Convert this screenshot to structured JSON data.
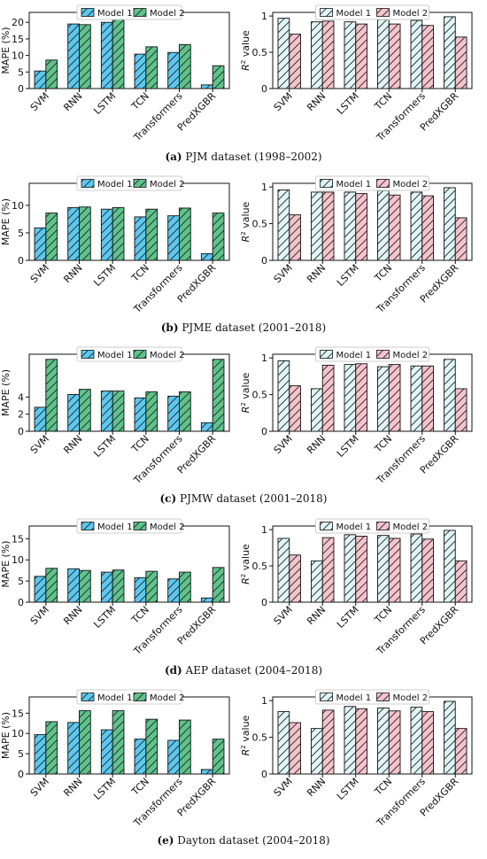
{
  "legend": {
    "model1": "Model 1",
    "model2": "Model 2"
  },
  "colors": {
    "mape_model1": "#5bc8ef",
    "mape_model2": "#5ec38b",
    "r2_model1": "#dff5f8",
    "r2_model2": "#f5c3cc",
    "edge": "#111111"
  },
  "panels": [
    {
      "caption": {
        "letter": "(a)",
        "text": "PJM dataset (1998–2002)"
      }
    },
    {
      "caption": {
        "letter": "(b)",
        "text": "PJME dataset (2001–2018)"
      }
    },
    {
      "caption": {
        "letter": "(c)",
        "text": "PJMW dataset (2001–2018)"
      }
    },
    {
      "caption": {
        "letter": "(d)",
        "text": "AEP dataset (2004–2018)"
      }
    },
    {
      "caption": {
        "letter": "(e)",
        "text": "Dayton dataset (2004–2018)"
      }
    }
  ],
  "chart_data": [
    {
      "panel": "a",
      "type": "bar",
      "categories": [
        "SVM",
        "RNN",
        "LSTM",
        "TCN",
        "Transformers",
        "PredXGBR"
      ],
      "ylabel": "MAPE (%)",
      "ylim": [
        0,
        23
      ],
      "yticks": [
        0,
        5,
        10,
        15,
        20
      ],
      "series": [
        {
          "name": "Model 1",
          "values": [
            5.3,
            19.5,
            20.0,
            10.4,
            10.9,
            1.1
          ]
        },
        {
          "name": "Model 2",
          "values": [
            8.6,
            19.3,
            21.3,
            12.6,
            13.3,
            6.9
          ]
        }
      ],
      "legend_position": "top-center"
    },
    {
      "panel": "a",
      "type": "bar",
      "categories": [
        "SVM",
        "RNN",
        "LSTM",
        "TCN",
        "Transformers",
        "PredXGBR"
      ],
      "ylabel": "R² value",
      "ylim": [
        0,
        1.05
      ],
      "yticks": [
        0,
        0.5,
        1
      ],
      "series": [
        {
          "name": "Model 1",
          "values": [
            0.97,
            0.92,
            0.92,
            0.95,
            0.94,
            0.99
          ]
        },
        {
          "name": "Model 2",
          "values": [
            0.75,
            0.93,
            0.89,
            0.89,
            0.87,
            0.71
          ]
        }
      ],
      "legend_position": "top-center"
    },
    {
      "panel": "b",
      "type": "bar",
      "categories": [
        "SVM",
        "RNN",
        "LSTM",
        "TCN",
        "Transformers",
        "PredXGBR"
      ],
      "ylabel": "MAPE (%)",
      "ylim": [
        0,
        14
      ],
      "yticks": [
        0,
        5,
        10
      ],
      "series": [
        {
          "name": "Model 1",
          "values": [
            5.9,
            9.6,
            9.3,
            7.9,
            8.1,
            1.2
          ]
        },
        {
          "name": "Model 2",
          "values": [
            8.6,
            9.7,
            9.6,
            9.3,
            9.5,
            8.6
          ]
        }
      ],
      "legend_position": "top-center"
    },
    {
      "panel": "b",
      "type": "bar",
      "categories": [
        "SVM",
        "RNN",
        "LSTM",
        "TCN",
        "Transformers",
        "PredXGBR"
      ],
      "ylabel": "R² value",
      "ylim": [
        0,
        1.05
      ],
      "yticks": [
        0,
        0.5,
        1
      ],
      "series": [
        {
          "name": "Model 1",
          "values": [
            0.96,
            0.93,
            0.93,
            0.95,
            0.93,
            0.99
          ]
        },
        {
          "name": "Model 2",
          "values": [
            0.62,
            0.93,
            0.91,
            0.89,
            0.88,
            0.58
          ]
        }
      ],
      "legend_position": "top-center"
    },
    {
      "panel": "c",
      "type": "bar",
      "categories": [
        "SVM",
        "RNN",
        "LSTM",
        "TCN",
        "Transformers",
        "PredXGBR"
      ],
      "ylabel": "MAPE (%)",
      "ylim": [
        0,
        9
      ],
      "yticks": [
        0,
        2,
        4
      ],
      "series": [
        {
          "name": "Model 1",
          "values": [
            2.8,
            4.3,
            4.7,
            3.9,
            4.1,
            1.0
          ]
        },
        {
          "name": "Model 2",
          "values": [
            8.4,
            4.9,
            4.7,
            4.6,
            4.6,
            8.4
          ]
        }
      ],
      "legend_position": "top-center"
    },
    {
      "panel": "c",
      "type": "bar",
      "categories": [
        "SVM",
        "RNN",
        "LSTM",
        "TCN",
        "Transformers",
        "PredXGBR"
      ],
      "ylabel": "R² value",
      "ylim": [
        0,
        1.05
      ],
      "yticks": [
        0,
        0.5,
        1
      ],
      "series": [
        {
          "name": "Model 1",
          "values": [
            0.96,
            0.58,
            0.91,
            0.88,
            0.89,
            0.98
          ]
        },
        {
          "name": "Model 2",
          "values": [
            0.62,
            0.9,
            0.92,
            0.91,
            0.89,
            0.58
          ]
        }
      ],
      "legend_position": "top-center"
    },
    {
      "panel": "d",
      "type": "bar",
      "categories": [
        "SVM",
        "RNN",
        "LSTM",
        "TCN",
        "Transformers",
        "PredXGBR"
      ],
      "ylabel": "MAPE (%)",
      "ylim": [
        0,
        18
      ],
      "yticks": [
        0,
        5,
        10,
        15
      ],
      "series": [
        {
          "name": "Model 1",
          "values": [
            6.1,
            7.9,
            7.1,
            5.8,
            5.5,
            1.0
          ]
        },
        {
          "name": "Model 2",
          "values": [
            8.0,
            7.5,
            7.6,
            7.3,
            7.1,
            8.2
          ]
        }
      ],
      "legend_position": "top-center"
    },
    {
      "panel": "d",
      "type": "bar",
      "categories": [
        "SVM",
        "RNN",
        "LSTM",
        "TCN",
        "Transformers",
        "PredXGBR"
      ],
      "ylabel": "R² value",
      "ylim": [
        0,
        1.05
      ],
      "yticks": [
        0,
        0.5,
        1
      ],
      "series": [
        {
          "name": "Model 1",
          "values": [
            0.88,
            0.57,
            0.93,
            0.92,
            0.94,
            0.99
          ]
        },
        {
          "name": "Model 2",
          "values": [
            0.65,
            0.89,
            0.91,
            0.88,
            0.87,
            0.57
          ]
        }
      ],
      "legend_position": "top-center"
    },
    {
      "panel": "e",
      "type": "bar",
      "categories": [
        "SVM",
        "RNN",
        "LSTM",
        "TCN",
        "Transformers",
        "PredXGBR"
      ],
      "ylabel": "MAPE (%)",
      "ylim": [
        0,
        19
      ],
      "yticks": [
        0,
        5,
        10,
        15
      ],
      "series": [
        {
          "name": "Model 1",
          "values": [
            9.7,
            12.7,
            10.9,
            8.6,
            8.3,
            1.1
          ]
        },
        {
          "name": "Model 2",
          "values": [
            12.9,
            15.6,
            15.6,
            13.5,
            13.3,
            8.6
          ]
        }
      ],
      "legend_position": "top-center"
    },
    {
      "panel": "e",
      "type": "bar",
      "categories": [
        "SVM",
        "RNN",
        "LSTM",
        "TCN",
        "Transformers",
        "PredXGBR"
      ],
      "ylabel": "R² value",
      "ylim": [
        0,
        1.05
      ],
      "yticks": [
        0,
        0.5,
        1
      ],
      "series": [
        {
          "name": "Model 1",
          "values": [
            0.85,
            0.62,
            0.92,
            0.9,
            0.91,
            0.99
          ]
        },
        {
          "name": "Model 2",
          "values": [
            0.7,
            0.87,
            0.89,
            0.86,
            0.85,
            0.62
          ]
        }
      ],
      "legend_position": "top-center"
    }
  ]
}
